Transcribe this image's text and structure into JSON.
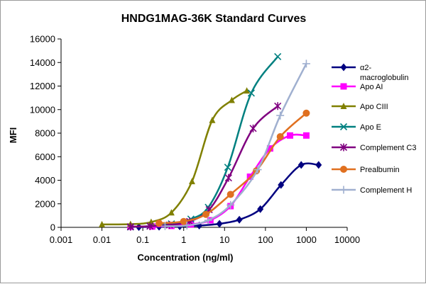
{
  "chart_data": {
    "type": "scatter",
    "title": "HNDG1MAG-36K Standard  Curves",
    "xlabel": "Concentration (ng/ml)",
    "ylabel": "MFI",
    "x_scale": "log",
    "xlim": [
      0.001,
      10000
    ],
    "ylim": [
      0,
      16000
    ],
    "x_ticks": [
      0.001,
      0.01,
      0.1,
      1,
      10,
      100,
      1000,
      10000
    ],
    "x_tick_labels": [
      "0.001",
      "0.01",
      "0.1",
      "1",
      "10",
      "100",
      "1000",
      "10000"
    ],
    "y_ticks": [
      0,
      2000,
      4000,
      6000,
      8000,
      10000,
      12000,
      14000,
      16000
    ],
    "y_tick_labels": [
      "0",
      "2000",
      "4000",
      "6000",
      "8000",
      "10000",
      "12000",
      "14000",
      "16000"
    ],
    "grid": false,
    "legend_position": "right",
    "series": [
      {
        "name": "α2-macroglobulin",
        "legend_lines": [
          "α2-",
          "macroglobulin"
        ],
        "color": "#000080",
        "marker": "diamond",
        "points": [
          [
            0.08,
            20
          ],
          [
            0.25,
            50
          ],
          [
            0.8,
            90
          ],
          [
            2.4,
            150
          ],
          [
            7.5,
            300
          ],
          [
            23,
            650
          ],
          [
            75,
            1550
          ],
          [
            240,
            3600
          ],
          [
            750,
            5300
          ],
          [
            2000,
            5300
          ]
        ]
      },
      {
        "name": "Apo AI",
        "legend_lines": [
          "Apo AI"
        ],
        "color": "#ff00ff",
        "marker": "square",
        "points": [
          [
            0.05,
            50
          ],
          [
            0.17,
            70
          ],
          [
            0.5,
            120
          ],
          [
            1.5,
            250
          ],
          [
            4.5,
            600
          ],
          [
            14,
            1800
          ],
          [
            42,
            4300
          ],
          [
            130,
            6700
          ],
          [
            400,
            7800
          ],
          [
            1000,
            7800
          ]
        ]
      },
      {
        "name": "Apo CIII",
        "legend_lines": [
          "Apo CIII"
        ],
        "color": "#808000",
        "marker": "triangle",
        "points": [
          [
            0.01,
            250
          ],
          [
            0.05,
            270
          ],
          [
            0.16,
            450
          ],
          [
            0.5,
            1250
          ],
          [
            1.6,
            3900
          ],
          [
            5,
            9100
          ],
          [
            15,
            10800
          ],
          [
            35,
            11600
          ]
        ]
      },
      {
        "name": "Apo E",
        "legend_lines": [
          "Apo E"
        ],
        "color": "#008080",
        "marker": "x",
        "points": [
          [
            0.05,
            30
          ],
          [
            0.15,
            100
          ],
          [
            0.5,
            300
          ],
          [
            1.5,
            700
          ],
          [
            4,
            1700
          ],
          [
            12,
            5100
          ],
          [
            45,
            11400
          ],
          [
            200,
            14500
          ]
        ]
      },
      {
        "name": "Complement C3",
        "legend_lines": [
          "Complement C3"
        ],
        "color": "#800080",
        "marker": "star",
        "points": [
          [
            0.05,
            50
          ],
          [
            0.15,
            100
          ],
          [
            0.45,
            200
          ],
          [
            1.4,
            500
          ],
          [
            4.2,
            1500
          ],
          [
            12.5,
            4200
          ],
          [
            50,
            8400
          ],
          [
            200,
            10300
          ]
        ]
      },
      {
        "name": "Prealbumin",
        "legend_lines": [
          "Prealbumin"
        ],
        "color": "#e07020",
        "marker": "circle",
        "points": [
          [
            0.25,
            350
          ],
          [
            1,
            500
          ],
          [
            3.5,
            1100
          ],
          [
            14,
            2800
          ],
          [
            60,
            4800
          ],
          [
            230,
            7700
          ],
          [
            1000,
            9700
          ]
        ]
      },
      {
        "name": "Complement H",
        "legend_lines": [
          "Complement H"
        ],
        "color": "#a0b0d0",
        "marker": "plus",
        "points": [
          [
            0.35,
            100
          ],
          [
            1.2,
            150
          ],
          [
            4,
            600
          ],
          [
            14,
            1900
          ],
          [
            65,
            4900
          ],
          [
            230,
            9500
          ],
          [
            1000,
            13900
          ]
        ]
      }
    ]
  }
}
